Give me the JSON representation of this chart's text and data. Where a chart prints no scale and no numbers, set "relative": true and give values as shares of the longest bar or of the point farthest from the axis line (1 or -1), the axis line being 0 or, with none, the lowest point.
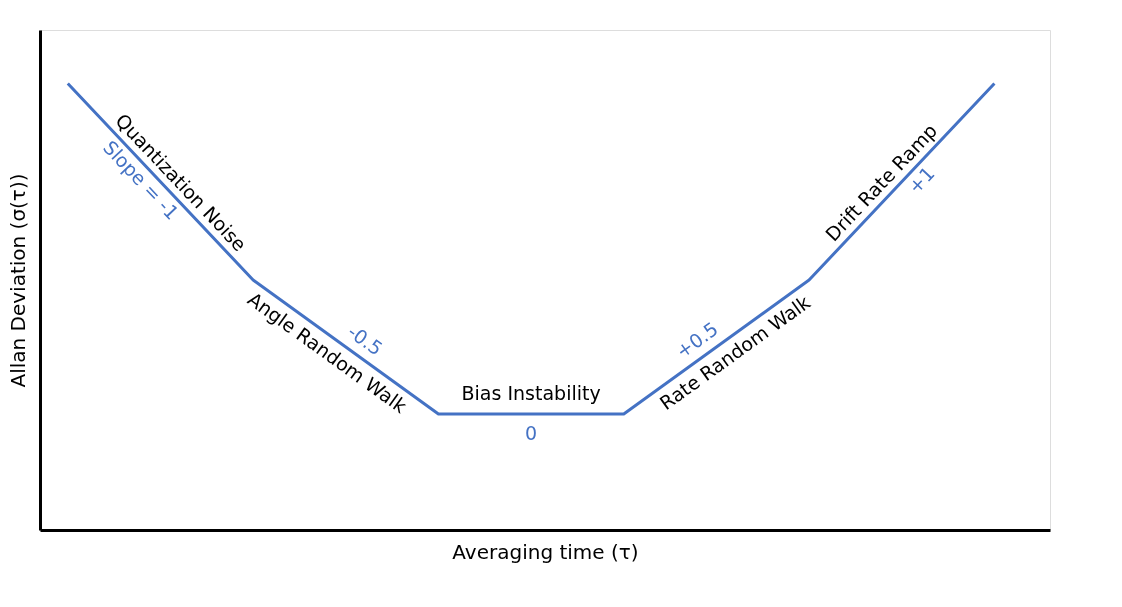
{
  "chart_data": {
    "type": "line",
    "relative": true,
    "categories": [
      null,
      null,
      null,
      null,
      null,
      null
    ],
    "series": [
      {
        "color": "#4472c4",
        "values": [
          1,
          0.56,
          0.26,
          0.26,
          0.56,
          1
        ]
      }
    ],
    "xlabel": "Averaging time (τ)",
    "ylabel": "Allan Deviation (σ(τ))",
    "annotations": [
      "Quantization Noise",
      "Slope = -1",
      "Angle Random Walk",
      "-0.5",
      "Bias Instability",
      "0",
      "Rate Random Walk",
      "+0.5",
      "Drift Rate Ramp",
      "+1"
    ],
    "grid": false,
    "marker": "none",
    "line_style": "solid"
  }
}
